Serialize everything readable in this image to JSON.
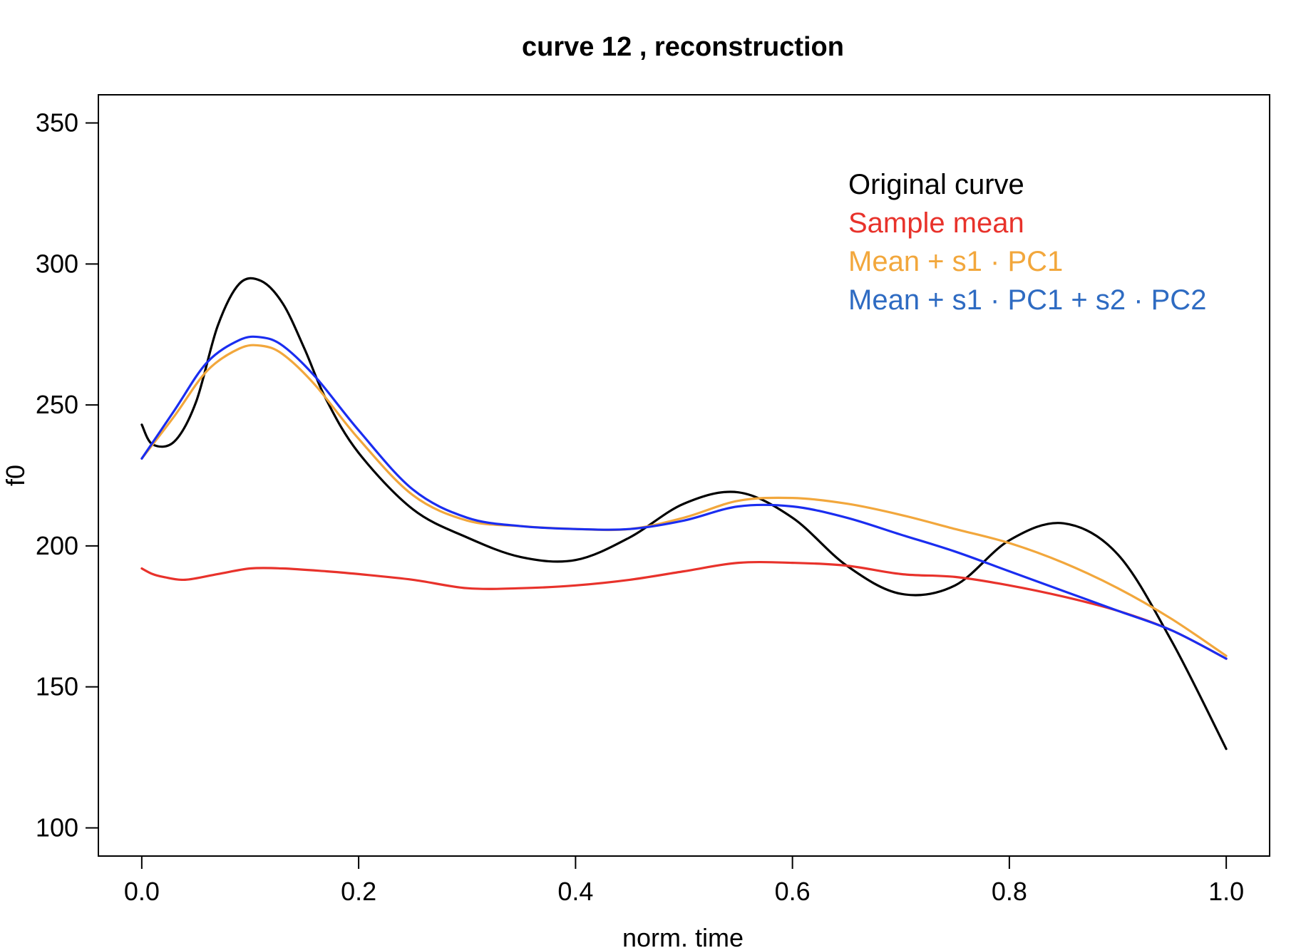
{
  "chart_data": {
    "type": "line",
    "title": "curve 12 , reconstruction",
    "xlabel": "norm. time",
    "ylabel": "f0",
    "xlim": [
      -0.04,
      1.04
    ],
    "ylim": [
      90,
      360
    ],
    "x_ticks": [
      0.0,
      0.2,
      0.4,
      0.6,
      0.8,
      1.0
    ],
    "x_tick_labels": [
      "0.0",
      "0.2",
      "0.4",
      "0.6",
      "0.8",
      "1.0"
    ],
    "y_ticks": [
      100,
      150,
      200,
      250,
      300,
      350
    ],
    "y_tick_labels": [
      "100",
      "150",
      "200",
      "250",
      "300",
      "350"
    ],
    "grid": false,
    "legend_position": "top-right",
    "series": [
      {
        "name": "Original curve",
        "color": "#000000",
        "x": [
          0.0,
          0.01,
          0.03,
          0.05,
          0.07,
          0.09,
          0.11,
          0.13,
          0.15,
          0.17,
          0.2,
          0.25,
          0.3,
          0.35,
          0.4,
          0.45,
          0.5,
          0.55,
          0.6,
          0.65,
          0.7,
          0.75,
          0.8,
          0.85,
          0.9,
          0.95,
          1.0
        ],
        "y": [
          243,
          236,
          237,
          251,
          278,
          293,
          294,
          286,
          270,
          252,
          233,
          213,
          203,
          196,
          195,
          203,
          215,
          219,
          210,
          193,
          183,
          186,
          202,
          208,
          197,
          166,
          128
        ]
      },
      {
        "name": "Sample mean",
        "color": "#e8322b",
        "x": [
          0.0,
          0.01,
          0.02,
          0.04,
          0.07,
          0.1,
          0.13,
          0.17,
          0.2,
          0.25,
          0.3,
          0.35,
          0.4,
          0.45,
          0.5,
          0.55,
          0.6,
          0.65,
          0.7,
          0.75,
          0.8,
          0.85,
          0.9,
          0.95,
          1.0
        ],
        "y": [
          192,
          190,
          189,
          188,
          190,
          192,
          192,
          191,
          190,
          188,
          185,
          185,
          186,
          188,
          191,
          194,
          194,
          193,
          190,
          189,
          186,
          182,
          177,
          170,
          160
        ]
      },
      {
        "name": "Mean + s1 · PC1",
        "color": "#f2a73c",
        "x": [
          0.0,
          0.03,
          0.06,
          0.09,
          0.11,
          0.13,
          0.16,
          0.2,
          0.25,
          0.3,
          0.35,
          0.4,
          0.45,
          0.5,
          0.55,
          0.6,
          0.65,
          0.7,
          0.75,
          0.8,
          0.85,
          0.9,
          0.95,
          1.0
        ],
        "y": [
          231,
          246,
          262,
          270,
          271,
          268,
          257,
          238,
          218,
          209,
          207,
          206,
          206,
          210,
          216,
          217,
          215,
          211,
          206,
          201,
          194,
          185,
          174,
          161
        ]
      },
      {
        "name": "Mean + s1 · PC1 + s2 · PC2",
        "color": "#1a2df0",
        "x": [
          0.0,
          0.03,
          0.06,
          0.09,
          0.11,
          0.13,
          0.16,
          0.2,
          0.25,
          0.3,
          0.35,
          0.4,
          0.45,
          0.5,
          0.55,
          0.6,
          0.65,
          0.7,
          0.75,
          0.8,
          0.85,
          0.9,
          0.95,
          1.0
        ],
        "y": [
          231,
          248,
          265,
          273,
          274,
          271,
          260,
          241,
          220,
          210,
          207,
          206,
          206,
          209,
          214,
          214,
          210,
          204,
          198,
          191,
          184,
          177,
          170,
          160
        ]
      }
    ],
    "legend": [
      {
        "label": "Original curve",
        "color": "#000000"
      },
      {
        "label": "Sample mean",
        "color": "#e8322b"
      },
      {
        "label": "Mean + s1 · PC1",
        "color": "#f2a73c"
      },
      {
        "label": "Mean + s1 · PC1 + s2 · PC2",
        "color": "#2e6bc2"
      }
    ]
  }
}
